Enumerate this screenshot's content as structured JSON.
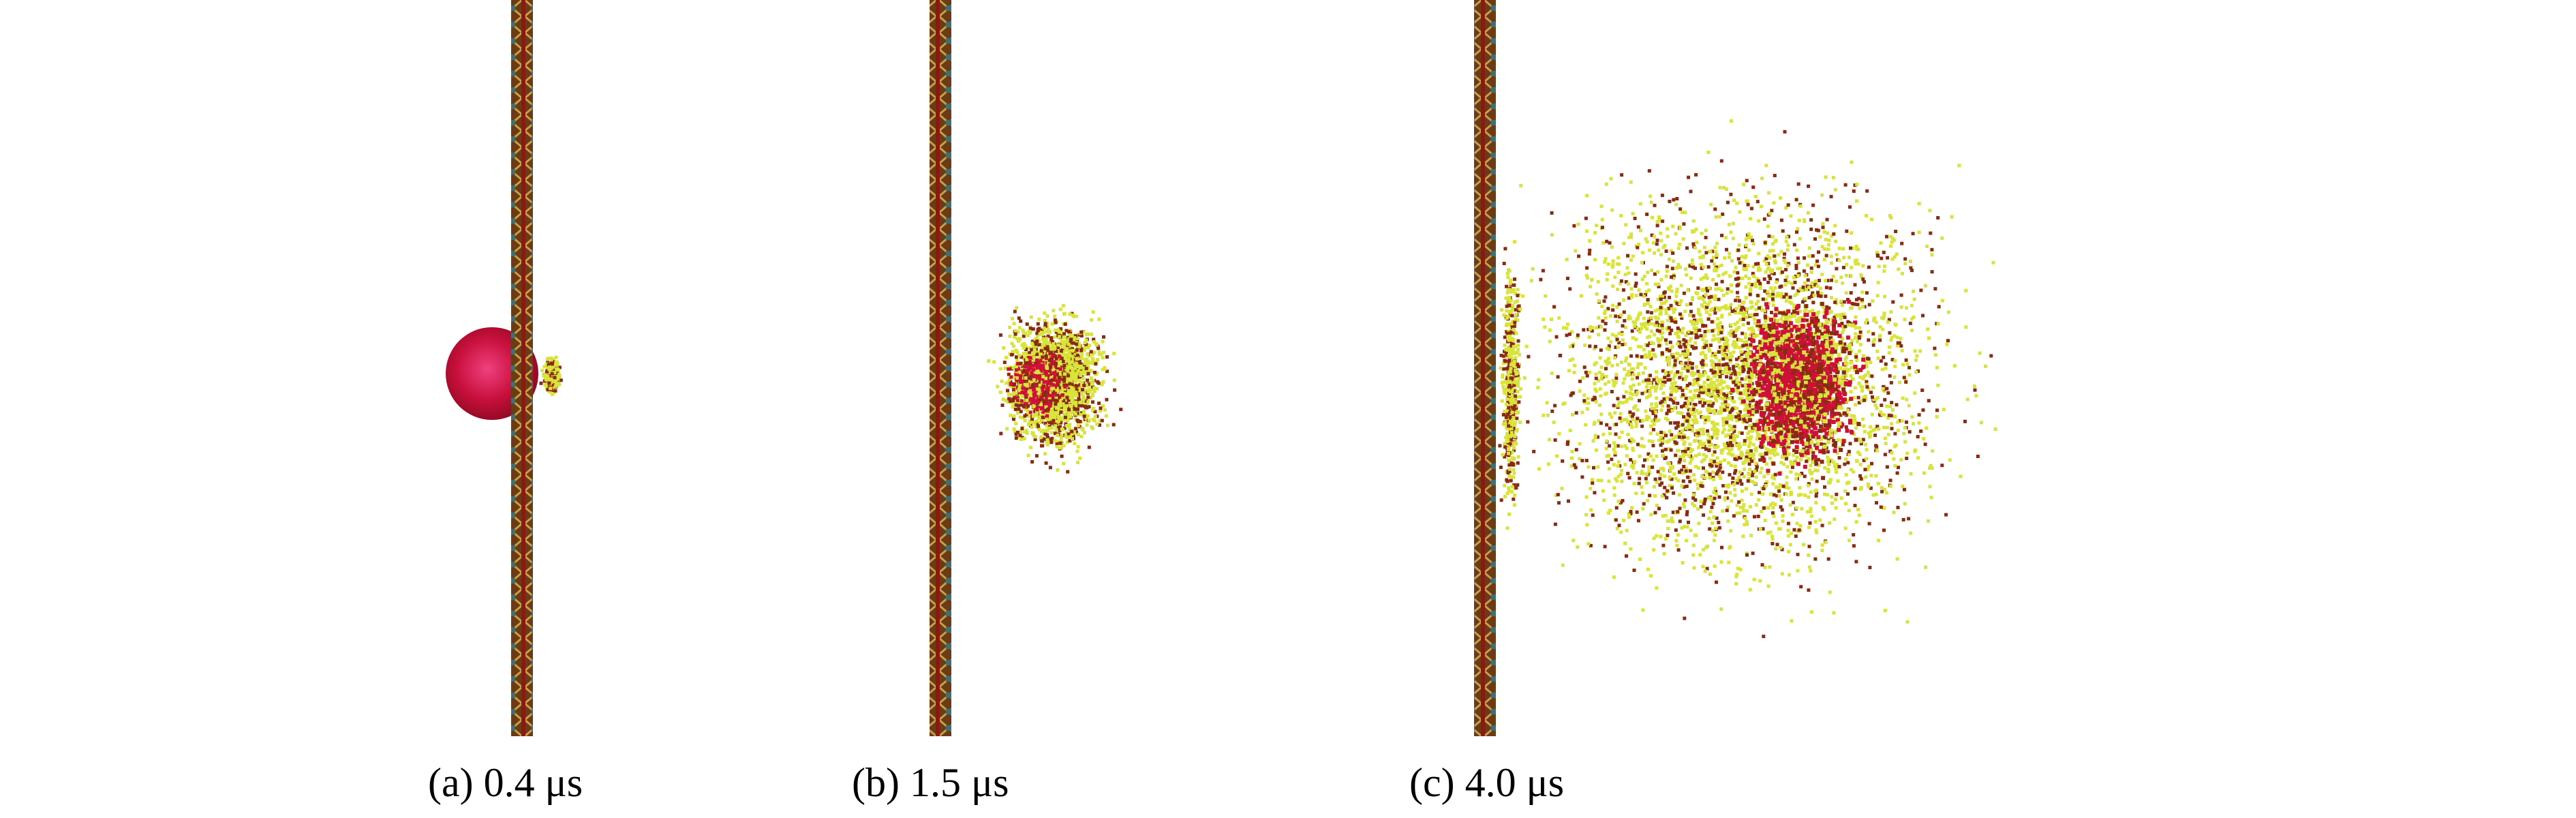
{
  "panels": [
    {
      "id": "a",
      "label": "(a)",
      "time": "0.4 μs"
    },
    {
      "id": "b",
      "label": "(b)",
      "time": "1.5 μs"
    },
    {
      "id": "c",
      "label": "(c)",
      "time": "4.0 μs"
    }
  ],
  "captions": {
    "a": "(a) 0.4 μs",
    "b": "(b) 1.5 μs",
    "c": "(c) 4.0 μs"
  },
  "colors": {
    "background": "#ffffff",
    "projectile": "#c8103c",
    "debris_yellow": "#d8e43a",
    "debris_brown": "#8a2a10",
    "debris_red": "#d0103a",
    "plate_outer": "#8a3a14",
    "plate_inner": "#4a6a5a"
  }
}
